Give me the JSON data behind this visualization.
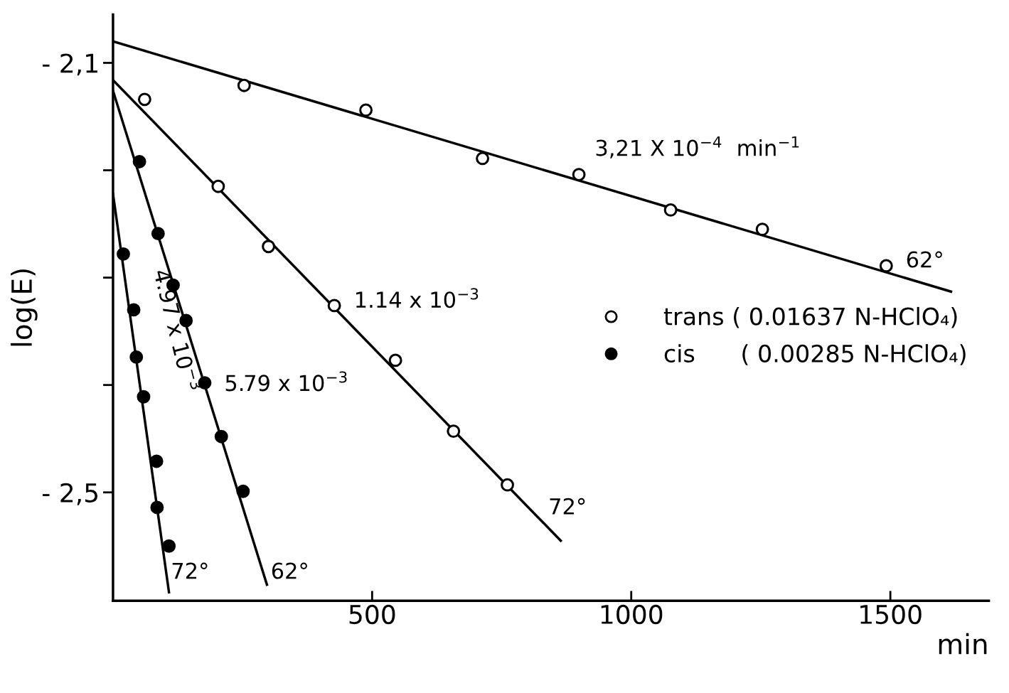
{
  "chart_data": {
    "type": "scatter",
    "xlabel": "min",
    "ylabel": "log(E)",
    "xlim": [
      0,
      1690
    ],
    "ylim": [
      -2.601,
      -2.055
    ],
    "xticks": [
      500,
      1000,
      1500
    ],
    "yticks": [
      {
        "value": -2.1,
        "label": "- 2,1"
      },
      {
        "value": -2.2,
        "label": null
      },
      {
        "value": -2.3,
        "label": null
      },
      {
        "value": -2.4,
        "label": null
      },
      {
        "value": -2.5,
        "label": "- 2,5"
      }
    ],
    "grid": false,
    "legend": "right",
    "series": [
      {
        "name": "trans ( 0.01637 N-HClO₄)",
        "marker": "circle",
        "color": "#ffffff",
        "x": [
          61,
          253,
          488,
          713,
          899,
          1076,
          1253,
          1492
        ],
        "values": [
          -2.134,
          -2.121,
          -2.144,
          -2.189,
          -2.204,
          -2.237,
          -2.255,
          -2.289
        ]
      },
      {
        "marker": "circle",
        "color": "#ffffff",
        "x": [
          203,
          300,
          427,
          545,
          657,
          761
        ],
        "values": [
          -2.215,
          -2.271,
          -2.326,
          -2.377,
          -2.443,
          -2.493
        ]
      },
      {
        "name": "cis      ( 0.00285 N-HClO₄)",
        "marker": "circle",
        "color": "#000000",
        "x": [
          51,
          87,
          116,
          141,
          177,
          209,
          251
        ],
        "values": [
          -2.192,
          -2.259,
          -2.307,
          -2.34,
          -2.398,
          -2.448,
          -2.499
        ]
      },
      {
        "marker": "circle",
        "color": "#000000",
        "x": [
          20,
          40,
          45,
          59,
          84,
          85,
          108
        ],
        "values": [
          -2.278,
          -2.33,
          -2.374,
          -2.411,
          -2.471,
          -2.514,
          -2.55
        ]
      },
      {
        "type": "line",
        "color": "#000000",
        "x": [
          0,
          1617
        ],
        "values": [
          -2.08,
          -2.313
        ]
      },
      {
        "type": "line",
        "color": "#000000",
        "x": [
          0,
          864
        ],
        "values": [
          -2.116,
          -2.545
        ]
      },
      {
        "type": "line",
        "color": "#000000",
        "x": [
          0,
          297
        ],
        "values": [
          -2.126,
          -2.586
        ]
      },
      {
        "type": "line",
        "color": "#000000",
        "x": [
          0,
          108
        ],
        "values": [
          -2.222,
          -2.593
        ]
      }
    ],
    "annotations": [
      "3,21 X 10$^{−4}$  min$^{−1}$",
      "1.14 x 10$^{−3}$",
      "5.79 x 10$^{−3}$",
      "4.97 x 10$^{−3}$",
      "62°",
      "72°",
      "72°",
      "62°"
    ]
  }
}
